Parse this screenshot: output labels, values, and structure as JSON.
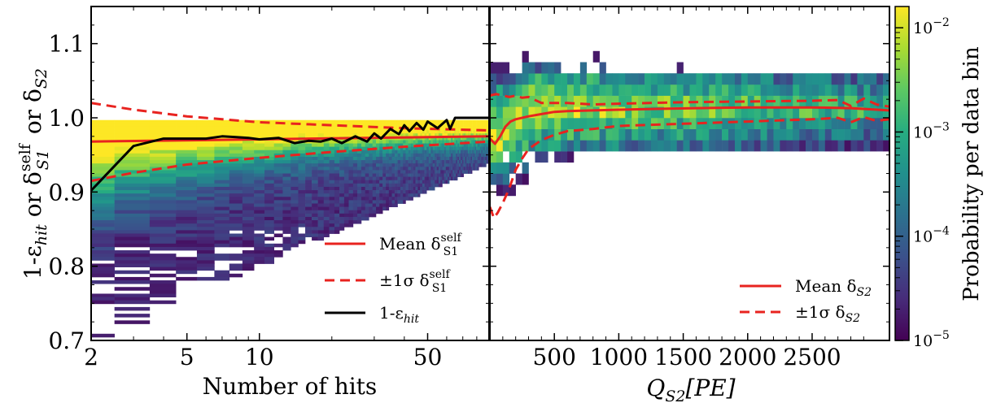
{
  "chart_data": [
    {
      "panel": "left",
      "type": "heatmap",
      "xscale": "log",
      "xlim": [
        2,
        90
      ],
      "ylim": [
        0.7,
        1.15
      ],
      "xlabel": "Number of hits",
      "ylabel_parts": {
        "pre": "1-ε",
        "hit_sub": "hit",
        "mid": " or δ",
        "self_sup": "self",
        "s1_sub": "S1",
        "or": " or δ",
        "s2_sub": "S2"
      },
      "xticks": [
        2,
        5,
        10,
        50
      ],
      "xtick_labels": [
        "2",
        "5",
        "10",
        "50"
      ],
      "yticks": [
        0.7,
        0.8,
        0.9,
        1.0,
        1.1
      ],
      "ytick_labels": [
        "0.7",
        "0.8",
        "0.9",
        "1.0",
        "1.1"
      ],
      "grid": false,
      "legend_position": "bottom-right",
      "series": [
        {
          "key": "mean_self",
          "style": "solid",
          "color": "#e8231f",
          "x": [
            2,
            90
          ],
          "y": [
            0.968,
            0.975
          ]
        },
        {
          "key": "upper_self",
          "style": "dashed",
          "color": "#e8231f",
          "x": [
            2,
            3,
            5,
            10,
            20,
            40,
            90
          ],
          "y": [
            1.02,
            1.011,
            1.002,
            0.994,
            0.99,
            0.986,
            0.983
          ]
        },
        {
          "key": "lower_self",
          "style": "dashed",
          "color": "#e8231f",
          "x": [
            2,
            3,
            5,
            10,
            20,
            40,
            90
          ],
          "y": [
            0.915,
            0.926,
            0.937,
            0.946,
            0.954,
            0.961,
            0.968
          ]
        },
        {
          "key": "one_minus_eps",
          "style": "solid",
          "color": "#000000",
          "x": [
            2,
            3,
            4,
            5,
            6,
            7,
            8,
            9,
            10,
            12,
            14,
            16,
            18,
            20,
            22,
            25,
            28,
            30,
            32,
            35,
            38,
            40,
            42,
            45,
            48,
            50,
            55,
            60,
            62,
            65,
            70,
            80,
            90
          ],
          "y": [
            0.902,
            0.962,
            0.972,
            0.972,
            0.972,
            0.975,
            0.974,
            0.973,
            0.971,
            0.973,
            0.966,
            0.969,
            0.968,
            0.972,
            0.966,
            0.975,
            0.968,
            0.979,
            0.972,
            0.985,
            0.978,
            0.99,
            0.982,
            0.993,
            0.984,
            0.995,
            0.986,
            0.997,
            0.985,
            1.0,
            1.0,
            1.0,
            1.0
          ]
        }
      ],
      "legend": [
        {
          "series": "mean_self",
          "label_pre": "Mean δ",
          "label_sup": "self",
          "label_sub": "S1"
        },
        {
          "series": "upper_self",
          "label_pre": "±1σ δ",
          "label_sup": "self",
          "label_sub": "S1"
        },
        {
          "series": "one_minus_eps",
          "label_pre": "1-ε",
          "label_sub": "hit"
        }
      ]
    },
    {
      "panel": "right",
      "type": "heatmap",
      "xlim": [
        0,
        3100
      ],
      "ylim": [
        0.7,
        1.15
      ],
      "xlabel_parts": {
        "pre": "Q",
        "sub": "S2",
        "post": "[PE]"
      },
      "xticks": [
        500,
        1000,
        1500,
        2000,
        2500
      ],
      "xtick_labels": [
        "500",
        "1000",
        "1500",
        "2000",
        "2500"
      ],
      "grid": false,
      "legend_position": "bottom-right",
      "series": [
        {
          "key": "mean_s2",
          "style": "solid",
          "color": "#e8231f",
          "x": [
            0,
            40,
            80,
            120,
            160,
            200,
            300,
            400,
            500,
            600,
            800,
            1000,
            1300,
            1600,
            2000,
            2500,
            2800,
            3100
          ],
          "y": [
            0.972,
            0.965,
            0.975,
            0.988,
            0.995,
            0.998,
            1.002,
            1.005,
            1.008,
            1.009,
            1.01,
            1.011,
            1.012,
            1.013,
            1.014,
            1.014,
            1.013,
            1.01
          ]
        },
        {
          "key": "upper_s2",
          "style": "dashed",
          "color": "#e8231f",
          "x": [
            0,
            50,
            100,
            150,
            200,
            250,
            300,
            400,
            600,
            800,
            1000,
            1500,
            2000,
            2500,
            2700,
            2800,
            2900,
            3000,
            3100
          ],
          "y": [
            1.03,
            1.032,
            1.03,
            1.028,
            1.03,
            1.027,
            1.028,
            1.02,
            1.02,
            1.018,
            1.019,
            1.021,
            1.022,
            1.023,
            1.024,
            1.016,
            1.026,
            1.018,
            1.015
          ]
        },
        {
          "key": "lower_s2",
          "style": "dashed",
          "color": "#e8231f",
          "x": [
            0,
            30,
            60,
            100,
            150,
            200,
            250,
            300,
            400,
            500,
            600,
            800,
            1000,
            1500,
            2000,
            2500,
            2700,
            2800,
            2900,
            3000,
            3100
          ],
          "y": [
            0.88,
            0.865,
            0.872,
            0.885,
            0.905,
            0.93,
            0.945,
            0.958,
            0.97,
            0.977,
            0.982,
            0.985,
            0.989,
            0.992,
            0.995,
            0.998,
            1.0,
            0.994,
            1.001,
            0.996,
            0.998
          ]
        }
      ],
      "legend": [
        {
          "series": "mean_s2",
          "label_pre": "Mean δ",
          "label_sub": "S2"
        },
        {
          "series": "upper_s2",
          "label_pre": "±1σ δ",
          "label_sub": "S2"
        }
      ]
    },
    {
      "panel": "colorbar",
      "type": "colorbar",
      "scale": "log",
      "range": [
        1e-05,
        0.016
      ],
      "label": "Probability per data bin",
      "ticks": [
        {
          "value": 0.01,
          "base": "10",
          "exp": "−2"
        },
        {
          "value": 0.001,
          "base": "10",
          "exp": "−3"
        },
        {
          "value": 0.0001,
          "base": "10",
          "exp": "−4"
        },
        {
          "value": 1e-05,
          "base": "10",
          "exp": "−5"
        }
      ],
      "colormap": "viridis",
      "colors": [
        "#440154",
        "#472c7a",
        "#3b518b",
        "#2c718e",
        "#21908d",
        "#27ad81",
        "#5cc863",
        "#aadc32",
        "#fde725"
      ]
    }
  ]
}
